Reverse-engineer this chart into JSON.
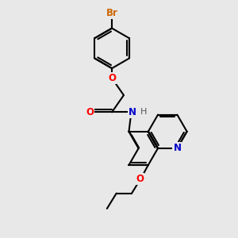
{
  "bg_color": "#e8e8e8",
  "bond_color": "#000000",
  "bond_width": 1.5,
  "atom_colors": {
    "Br": "#cc6600",
    "O": "#ff0000",
    "N": "#0000cc",
    "H": "#555555",
    "C": "#000000"
  },
  "font_size": 8.5,
  "fig_size": [
    3.0,
    3.0
  ],
  "dpi": 100
}
